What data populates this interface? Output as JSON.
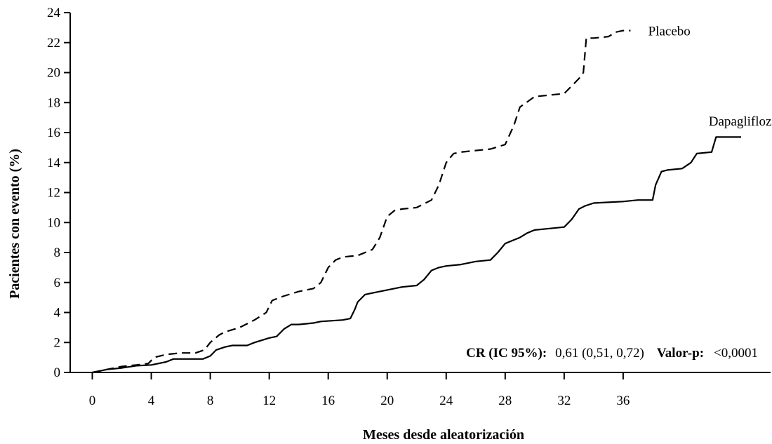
{
  "chart_data": {
    "type": "line",
    "xlabel": "Meses desde aleatorización",
    "ylabel": "Pacientes con evento (%)",
    "xlim": [
      -1.5,
      46
    ],
    "ylim": [
      0,
      24
    ],
    "x_ticks": [
      0,
      4,
      8,
      12,
      16,
      20,
      24,
      28,
      32,
      36
    ],
    "y_ticks": [
      0,
      2,
      4,
      6,
      8,
      10,
      12,
      14,
      16,
      18,
      20,
      22,
      24
    ],
    "series": [
      {
        "name": "Placebo",
        "style": "dashed",
        "color": "#000000",
        "points": [
          [
            0,
            0
          ],
          [
            0.5,
            0.1
          ],
          [
            1,
            0.2
          ],
          [
            2,
            0.4
          ],
          [
            3,
            0.5
          ],
          [
            3.8,
            0.6
          ],
          [
            4.2,
            1.0
          ],
          [
            5,
            1.2
          ],
          [
            6,
            1.3
          ],
          [
            7,
            1.3
          ],
          [
            7.6,
            1.5
          ],
          [
            8,
            2.0
          ],
          [
            8.6,
            2.5
          ],
          [
            9,
            2.7
          ],
          [
            10,
            3.0
          ],
          [
            11,
            3.5
          ],
          [
            11.8,
            4.0
          ],
          [
            12.2,
            4.8
          ],
          [
            13,
            5.1
          ],
          [
            14,
            5.4
          ],
          [
            15,
            5.6
          ],
          [
            15.5,
            6.0
          ],
          [
            16,
            7.0
          ],
          [
            16.5,
            7.5
          ],
          [
            17,
            7.7
          ],
          [
            18,
            7.8
          ],
          [
            19,
            8.2
          ],
          [
            19.5,
            9.0
          ],
          [
            20,
            10.4
          ],
          [
            20.5,
            10.8
          ],
          [
            21,
            10.9
          ],
          [
            22,
            11.0
          ],
          [
            23,
            11.5
          ],
          [
            23.5,
            12.5
          ],
          [
            24,
            14.0
          ],
          [
            24.5,
            14.6
          ],
          [
            25,
            14.7
          ],
          [
            26,
            14.8
          ],
          [
            27,
            14.9
          ],
          [
            28,
            15.2
          ],
          [
            28.6,
            16.5
          ],
          [
            29,
            17.7
          ],
          [
            30,
            18.4
          ],
          [
            31,
            18.5
          ],
          [
            32,
            18.6
          ],
          [
            32.6,
            19.2
          ],
          [
            33,
            19.6
          ],
          [
            33.3,
            20.0
          ],
          [
            33.5,
            22.3
          ],
          [
            34,
            22.3
          ],
          [
            35,
            22.4
          ],
          [
            35.5,
            22.7
          ],
          [
            36,
            22.8
          ],
          [
            36.5,
            22.8
          ]
        ]
      },
      {
        "name": "Dapagliflozina",
        "style": "solid",
        "color": "#000000",
        "points": [
          [
            0,
            0
          ],
          [
            0.5,
            0.1
          ],
          [
            1,
            0.2
          ],
          [
            2,
            0.3
          ],
          [
            3,
            0.45
          ],
          [
            4,
            0.5
          ],
          [
            5,
            0.7
          ],
          [
            5.5,
            0.9
          ],
          [
            6,
            0.9
          ],
          [
            7.5,
            0.9
          ],
          [
            8,
            1.1
          ],
          [
            8.4,
            1.5
          ],
          [
            9,
            1.7
          ],
          [
            9.5,
            1.8
          ],
          [
            10.5,
            1.8
          ],
          [
            11,
            2.0
          ],
          [
            12,
            2.3
          ],
          [
            12.5,
            2.4
          ],
          [
            13,
            2.9
          ],
          [
            13.5,
            3.2
          ],
          [
            14,
            3.2
          ],
          [
            15,
            3.3
          ],
          [
            15.5,
            3.4
          ],
          [
            17,
            3.5
          ],
          [
            17.5,
            3.6
          ],
          [
            17.8,
            4.2
          ],
          [
            18,
            4.7
          ],
          [
            18.5,
            5.2
          ],
          [
            19,
            5.3
          ],
          [
            20,
            5.5
          ],
          [
            21,
            5.7
          ],
          [
            22,
            5.8
          ],
          [
            22.5,
            6.2
          ],
          [
            23,
            6.8
          ],
          [
            23.5,
            7.0
          ],
          [
            24,
            7.1
          ],
          [
            25,
            7.2
          ],
          [
            26,
            7.4
          ],
          [
            27,
            7.5
          ],
          [
            27.5,
            8.0
          ],
          [
            28,
            8.6
          ],
          [
            28.5,
            8.8
          ],
          [
            29,
            9.0
          ],
          [
            29.5,
            9.3
          ],
          [
            30,
            9.5
          ],
          [
            31,
            9.6
          ],
          [
            32,
            9.7
          ],
          [
            32.5,
            10.2
          ],
          [
            33,
            10.9
          ],
          [
            33.4,
            11.1
          ],
          [
            34,
            11.3
          ],
          [
            35,
            11.35
          ],
          [
            36,
            11.4
          ],
          [
            37,
            11.5
          ],
          [
            38,
            11.5
          ],
          [
            38.2,
            12.5
          ],
          [
            38.6,
            13.4
          ],
          [
            39,
            13.5
          ],
          [
            40,
            13.6
          ],
          [
            40.6,
            14.0
          ],
          [
            41,
            14.6
          ],
          [
            42,
            14.7
          ],
          [
            42.3,
            15.7
          ],
          [
            44,
            15.7
          ]
        ]
      }
    ],
    "series_labels": [
      {
        "text": "Placebo",
        "x": 37.7,
        "y": 22.8
      },
      {
        "text": "Dapagliflozina",
        "x": 41.8,
        "y": 16.8
      }
    ],
    "annotation": {
      "cr_label": "CR (IC 95%):",
      "cr_value": "0,61 (0,51, 0,72)",
      "p_label": "Valor-p:",
      "p_value": "<0,0001"
    },
    "legend": "none",
    "grid": false
  }
}
